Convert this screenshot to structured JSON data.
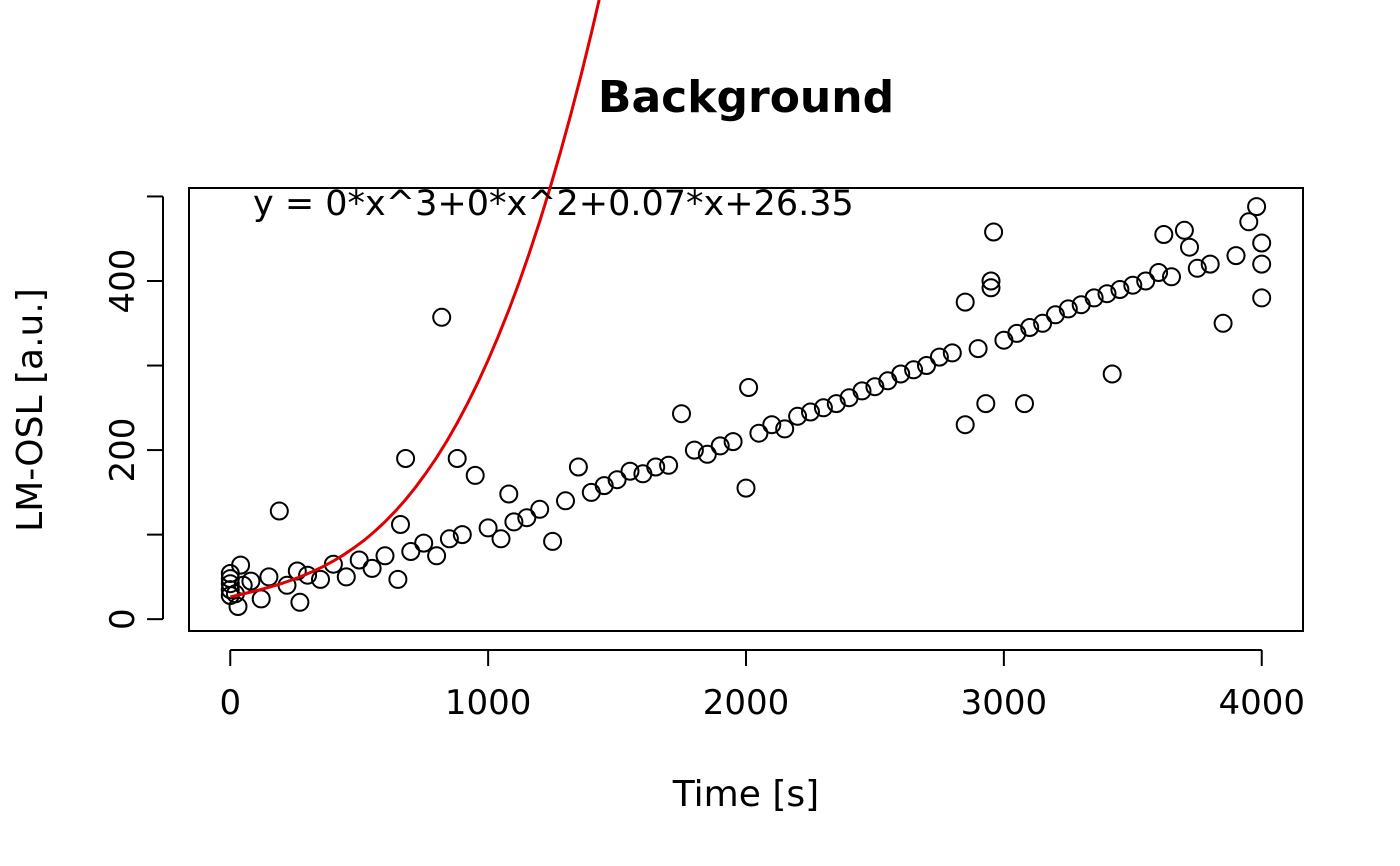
{
  "chart_data": {
    "type": "scatter",
    "title": "Background",
    "xlabel": "Time [s]",
    "ylabel": "LM-OSL [a.u.]",
    "annotation": "y = 0*x^3+0*x^2+0.07*x+26.35",
    "xlim": [
      -160,
      4160
    ],
    "ylim": [
      -14,
      510
    ],
    "xticks": [
      0,
      1000,
      2000,
      3000,
      4000
    ],
    "yticks": [
      0,
      100,
      200,
      300,
      400,
      500
    ],
    "ytick_labels": [
      "0",
      "",
      "200",
      "",
      "400",
      ""
    ],
    "grid": false,
    "box": true,
    "series": [
      {
        "type": "scatter",
        "marker": "open-circle",
        "color": "#000000",
        "points": [
          [
            0,
            28
          ],
          [
            0,
            35
          ],
          [
            0,
            42
          ],
          [
            0,
            48
          ],
          [
            0,
            54
          ],
          [
            20,
            30
          ],
          [
            30,
            15
          ],
          [
            40,
            64
          ],
          [
            50,
            40
          ],
          [
            80,
            45
          ],
          [
            120,
            24
          ],
          [
            150,
            50
          ],
          [
            190,
            128
          ],
          [
            220,
            40
          ],
          [
            260,
            57
          ],
          [
            270,
            20
          ],
          [
            300,
            52
          ],
          [
            350,
            47
          ],
          [
            400,
            65
          ],
          [
            450,
            50
          ],
          [
            500,
            70
          ],
          [
            550,
            60
          ],
          [
            600,
            75
          ],
          [
            650,
            47
          ],
          [
            660,
            112
          ],
          [
            680,
            190
          ],
          [
            700,
            80
          ],
          [
            750,
            90
          ],
          [
            800,
            75
          ],
          [
            820,
            357
          ],
          [
            850,
            95
          ],
          [
            880,
            190
          ],
          [
            900,
            100
          ],
          [
            950,
            170
          ],
          [
            1000,
            108
          ],
          [
            1050,
            95
          ],
          [
            1080,
            148
          ],
          [
            1100,
            115
          ],
          [
            1150,
            120
          ],
          [
            1200,
            130
          ],
          [
            1250,
            92
          ],
          [
            1300,
            140
          ],
          [
            1350,
            180
          ],
          [
            1400,
            150
          ],
          [
            1450,
            158
          ],
          [
            1500,
            165
          ],
          [
            1550,
            175
          ],
          [
            1600,
            172
          ],
          [
            1650,
            180
          ],
          [
            1700,
            182
          ],
          [
            1750,
            243
          ],
          [
            1800,
            200
          ],
          [
            1850,
            195
          ],
          [
            1900,
            205
          ],
          [
            1950,
            210
          ],
          [
            2000,
            155
          ],
          [
            2010,
            274
          ],
          [
            2050,
            220
          ],
          [
            2100,
            230
          ],
          [
            2150,
            225
          ],
          [
            2200,
            240
          ],
          [
            2250,
            245
          ],
          [
            2300,
            250
          ],
          [
            2350,
            255
          ],
          [
            2400,
            262
          ],
          [
            2450,
            270
          ],
          [
            2500,
            275
          ],
          [
            2550,
            282
          ],
          [
            2600,
            290
          ],
          [
            2650,
            295
          ],
          [
            2700,
            300
          ],
          [
            2750,
            310
          ],
          [
            2800,
            315
          ],
          [
            2850,
            230
          ],
          [
            2850,
            375
          ],
          [
            2900,
            320
          ],
          [
            2930,
            255
          ],
          [
            2950,
            392
          ],
          [
            2950,
            400
          ],
          [
            2960,
            458
          ],
          [
            3000,
            330
          ],
          [
            3050,
            338
          ],
          [
            3080,
            255
          ],
          [
            3100,
            345
          ],
          [
            3150,
            350
          ],
          [
            3200,
            360
          ],
          [
            3250,
            367
          ],
          [
            3300,
            372
          ],
          [
            3350,
            380
          ],
          [
            3400,
            385
          ],
          [
            3420,
            290
          ],
          [
            3450,
            390
          ],
          [
            3500,
            395
          ],
          [
            3550,
            400
          ],
          [
            3600,
            410
          ],
          [
            3620,
            455
          ],
          [
            3650,
            405
          ],
          [
            3700,
            460
          ],
          [
            3720,
            440
          ],
          [
            3750,
            415
          ],
          [
            3800,
            420
          ],
          [
            3850,
            350
          ],
          [
            3900,
            430
          ],
          [
            3950,
            470
          ],
          [
            3980,
            488
          ],
          [
            4000,
            380
          ],
          [
            4000,
            420
          ],
          [
            4000,
            445
          ]
        ]
      },
      {
        "type": "line",
        "color": "#e00000",
        "equation": {
          "a3": 2e-07,
          "a2": 1e-05,
          "a1": 0.07,
          "a0": 26.35
        },
        "x": [
          0,
          4000
        ]
      }
    ]
  }
}
